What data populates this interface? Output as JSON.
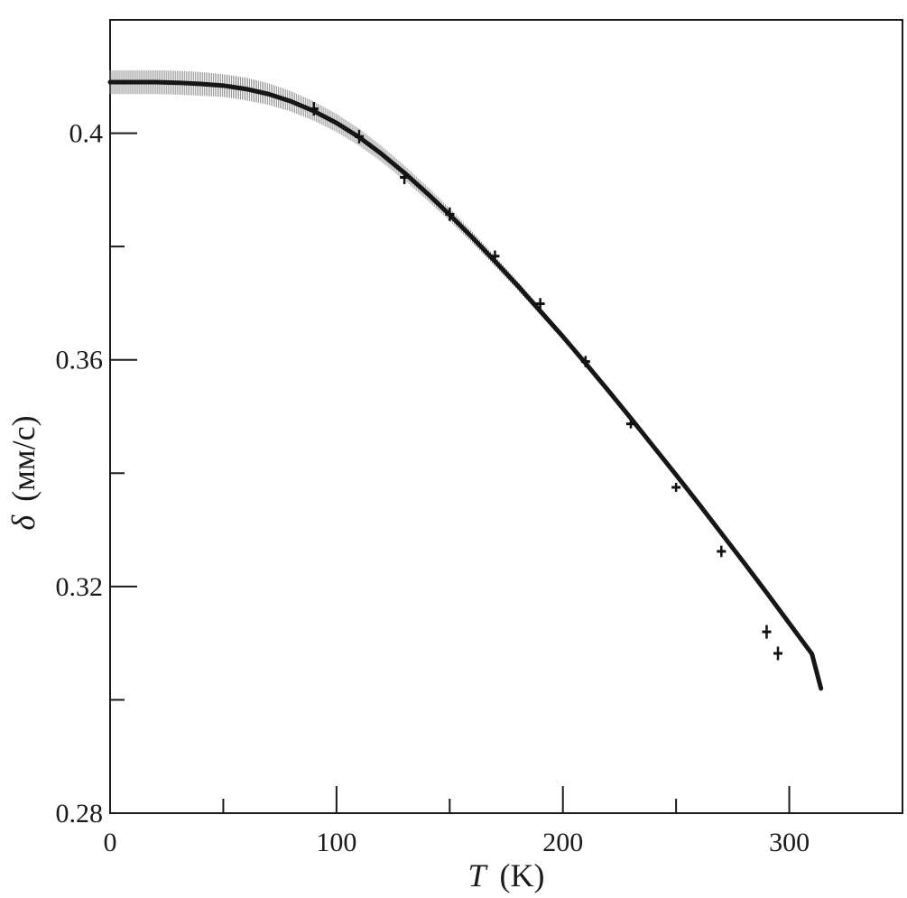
{
  "chart_data": {
    "type": "line",
    "xlabel": {
      "symbol": "T",
      "unit": "(K)"
    },
    "ylabel": {
      "symbol": "δ",
      "unit": "(мм/с)"
    },
    "xlim": [
      0,
      350
    ],
    "ylim": [
      0.28,
      0.42
    ],
    "x_ticks_labeled": [
      0,
      100,
      200,
      300
    ],
    "x_tick_labels": [
      "0",
      "100",
      "200",
      "300"
    ],
    "x_ticks_minor": [
      50,
      150,
      250
    ],
    "y_ticks_labeled": [
      0.28,
      0.32,
      0.36,
      0.4
    ],
    "y_tick_labels": [
      "0.28",
      "0.32",
      "0.36",
      "0.4"
    ],
    "y_ticks_minor": [
      0.3,
      0.34,
      0.38
    ],
    "grid": false,
    "series": [
      {
        "kind": "fit_curve_with_uncertainty_band",
        "x": [
          0,
          10,
          20,
          30,
          40,
          50,
          60,
          70,
          80,
          90,
          100,
          110,
          120,
          130,
          140,
          150,
          160,
          170,
          180,
          190,
          200,
          210,
          220,
          230,
          240,
          250,
          260,
          270,
          280,
          290,
          300,
          310,
          314
        ],
        "y": [
          0.409,
          0.409,
          0.409,
          0.4089,
          0.4087,
          0.4084,
          0.4078,
          0.4069,
          0.4056,
          0.4039,
          0.4018,
          0.3993,
          0.3963,
          0.393,
          0.3894,
          0.3856,
          0.3816,
          0.3774,
          0.3731,
          0.3686,
          0.3641,
          0.3594,
          0.3546,
          0.3497,
          0.3447,
          0.3397,
          0.3346,
          0.3294,
          0.3242,
          0.3189,
          0.3135,
          0.3081,
          0.302
        ],
        "band_halfwidth": [
          0.0021,
          0.0021,
          0.0021,
          0.0021,
          0.0021,
          0.002,
          0.002,
          0.0019,
          0.0018,
          0.0017,
          0.0016,
          0.0015,
          0.0014,
          0.0013,
          0.0012,
          0.0011,
          0.001,
          0.0009,
          0.0008,
          0.0007,
          0.0006,
          0.0006,
          0.0005,
          0.0005,
          0.0004,
          0.0004,
          0.0004,
          0.0004,
          0.0003,
          0.0003,
          0.0003,
          0.0003,
          0.0003
        ]
      },
      {
        "kind": "points_with_errorbars",
        "x": [
          90,
          110,
          130,
          150,
          170,
          190,
          210,
          230,
          250,
          270,
          290,
          295
        ],
        "y": [
          0.4043,
          0.3994,
          0.3922,
          0.3857,
          0.3783,
          0.3699,
          0.3597,
          0.3487,
          0.3375,
          0.3262,
          0.312,
          0.3082
        ],
        "yerr": [
          0.0012,
          0.0012,
          0.0012,
          0.0012,
          0.001,
          0.001,
          0.001,
          0.0008,
          0.0008,
          0.001,
          0.0012,
          0.0012
        ]
      }
    ]
  }
}
